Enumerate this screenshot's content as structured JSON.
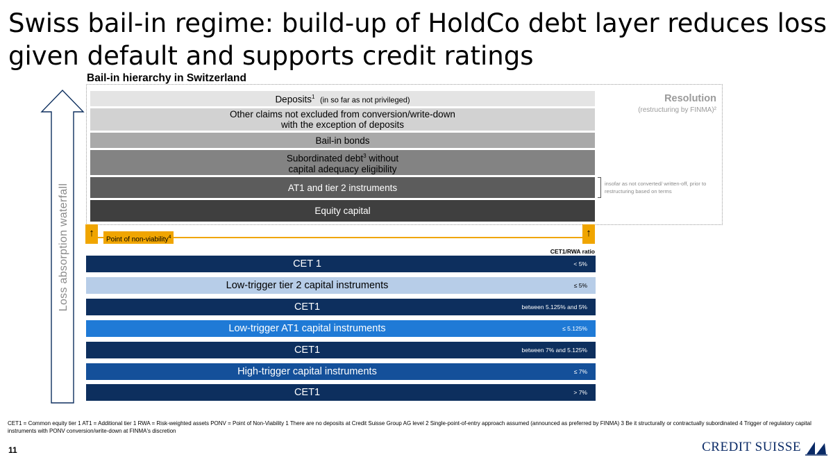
{
  "title": "Swiss bail-in regime: build-up of HoldCo debt layer reduces loss given default and supports credit ratings",
  "subtitle": "Bail-in hierarchy in Switzerland",
  "waterfall_label": "Loss absorption waterfall",
  "resolution": {
    "title": "Resolution",
    "subtitle": "(restructuring by FINMA)²",
    "bracket_note": "insofar as not converted/ written-off, prior to restructuring based on terms"
  },
  "hierarchy": [
    {
      "main": "Deposits",
      "sup": "1",
      "note": "(in so far as not privileged)",
      "bg": "#e4e4e4",
      "fg": "#000000"
    },
    {
      "line1": "Other claims not excluded from conversion/write-down",
      "line2": "with the exception of deposits",
      "bg": "#d2d2d2",
      "fg": "#000000"
    },
    {
      "main": "Bail-in bonds",
      "bg": "#a9a9a9",
      "fg": "#000000"
    },
    {
      "line1a": "Subordinated debt",
      "sup": "3",
      "line1b": " without",
      "line2": "capital adequacy eligibility",
      "bg": "#838383",
      "fg": "#000000"
    },
    {
      "main": "AT1 and tier 2 instruments",
      "bg": "#5c5c5c",
      "fg": "#ffffff"
    },
    {
      "main": "Equity capital",
      "bg": "#3f3f3f",
      "fg": "#ffffff"
    }
  ],
  "pnv": {
    "label": "Point of non-viability",
    "sup": "4",
    "arrow": "↑",
    "color": "#f0a500"
  },
  "cet_header": "CET1/RWA ratio",
  "triggers": [
    {
      "label": "CET 1",
      "ratio": "< 5%",
      "bg": "#0d2f5e",
      "fg": "#ffffff"
    },
    {
      "label": "Low-trigger tier 2 capital instruments",
      "ratio": "≤ 5%",
      "bg": "#b7cde8",
      "fg": "#000000"
    },
    {
      "label": "CET1",
      "ratio": "between 5.125% and 5%",
      "bg": "#0d2f5e",
      "fg": "#ffffff"
    },
    {
      "label": "Low-trigger AT1 capital instruments",
      "ratio": "≤ 5.125%",
      "bg": "#1f7ad6",
      "fg": "#ffffff"
    },
    {
      "label": "CET1",
      "ratio": "between 7% and 5.125%",
      "bg": "#0d2f5e",
      "fg": "#ffffff"
    },
    {
      "label": "High-trigger capital instruments",
      "ratio": "≤ 7%",
      "bg": "#14509a",
      "fg": "#ffffff"
    },
    {
      "label": "CET1",
      "ratio": "> 7%",
      "bg": "#0d2f5e",
      "fg": "#ffffff"
    }
  ],
  "footnote": "CET1 = Common equity tier 1    AT1 = Additional tier 1    RWA = Risk-weighted assets    PONV = Point of Non-Viability     1 There are no deposits at Credit Suisse Group AG  level     2 Single-point-of-entry approach assumed (announced as preferred by FINMA)    3 Be it structurally or contractually subordinated      4 Trigger of regulatory capital  instruments with PONV conversion/write-down at FINMA's discretion",
  "page_number": "11",
  "brand": "CREDIT SUISSE",
  "colors": {
    "arrow_outline": "#0d2f5e",
    "grey_text": "#9a9a9a",
    "brand": "#0a2a66"
  }
}
